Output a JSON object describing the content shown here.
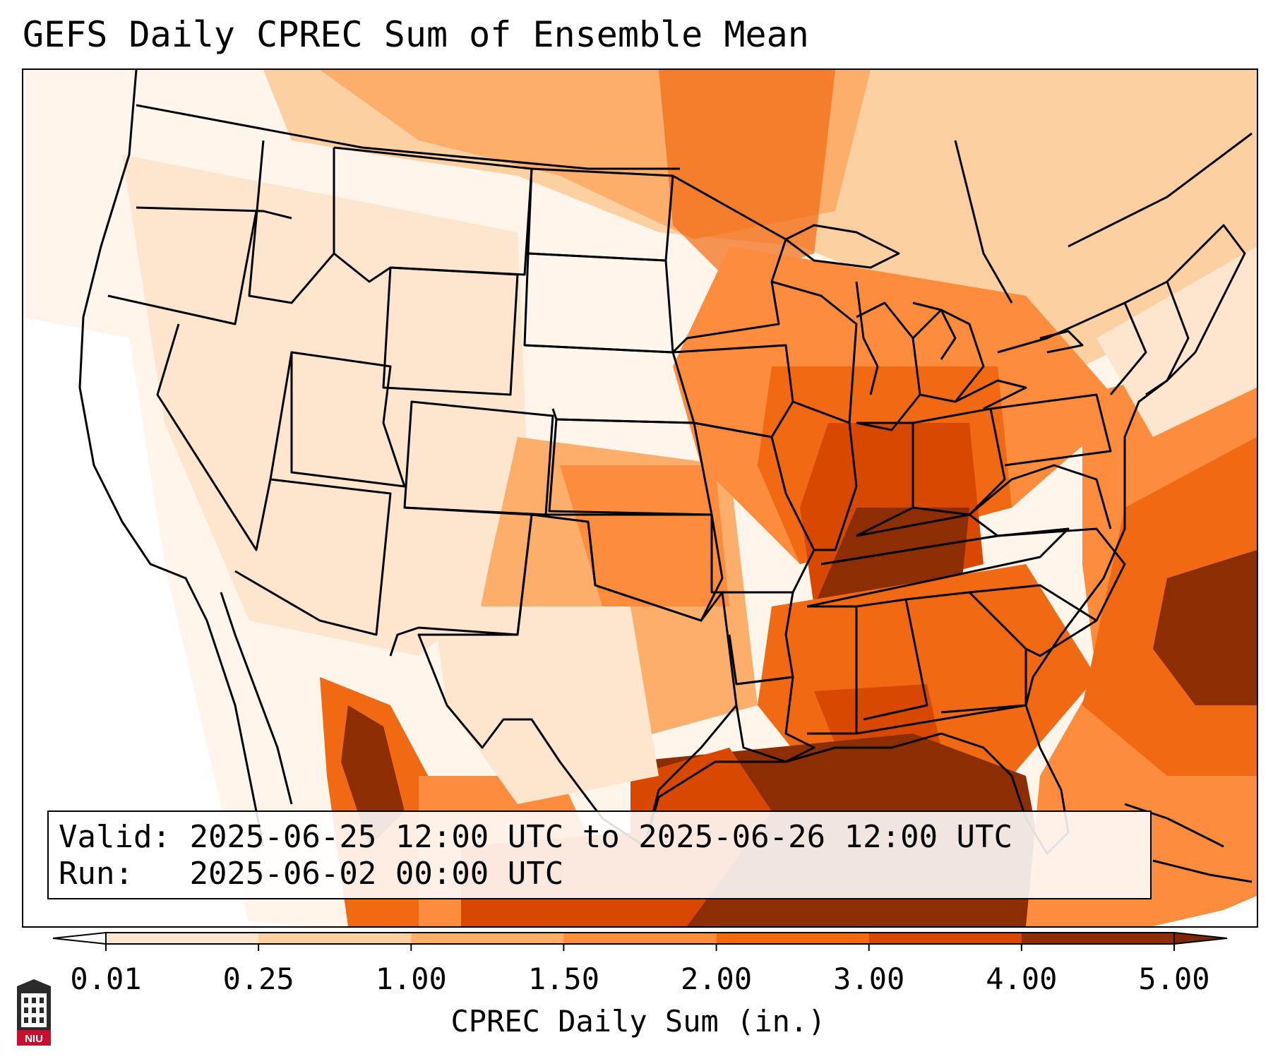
{
  "title": "GEFS Daily CPREC Sum of Ensemble Mean",
  "info": {
    "valid_label": "Valid:",
    "valid_value": "2025-06-25 12:00 UTC to 2025-06-26 12:00 UTC",
    "run_label": "Run:",
    "run_value": "2025-06-02 00:00 UTC"
  },
  "colorbar": {
    "label": "CPREC Daily Sum (in.)",
    "ticks": [
      "0.01",
      "0.25",
      "1.00",
      "1.50",
      "2.00",
      "3.00",
      "4.00",
      "5.00"
    ],
    "colors": [
      "#fff5eb",
      "#fee6ce",
      "#fdd0a2",
      "#fdae6b",
      "#fd8d3c",
      "#f16913",
      "#d94801",
      "#8c2d04"
    ],
    "under_color": "#ffffff",
    "over_color": "#7f2704"
  },
  "logo": {
    "text": "NIU",
    "colors": {
      "badge": "#c8102e",
      "tower": "#2b2b2b"
    }
  },
  "map": {
    "region": "Continental United States",
    "features": [
      "state-borders",
      "coastlines",
      "precipitation-field"
    ]
  }
}
